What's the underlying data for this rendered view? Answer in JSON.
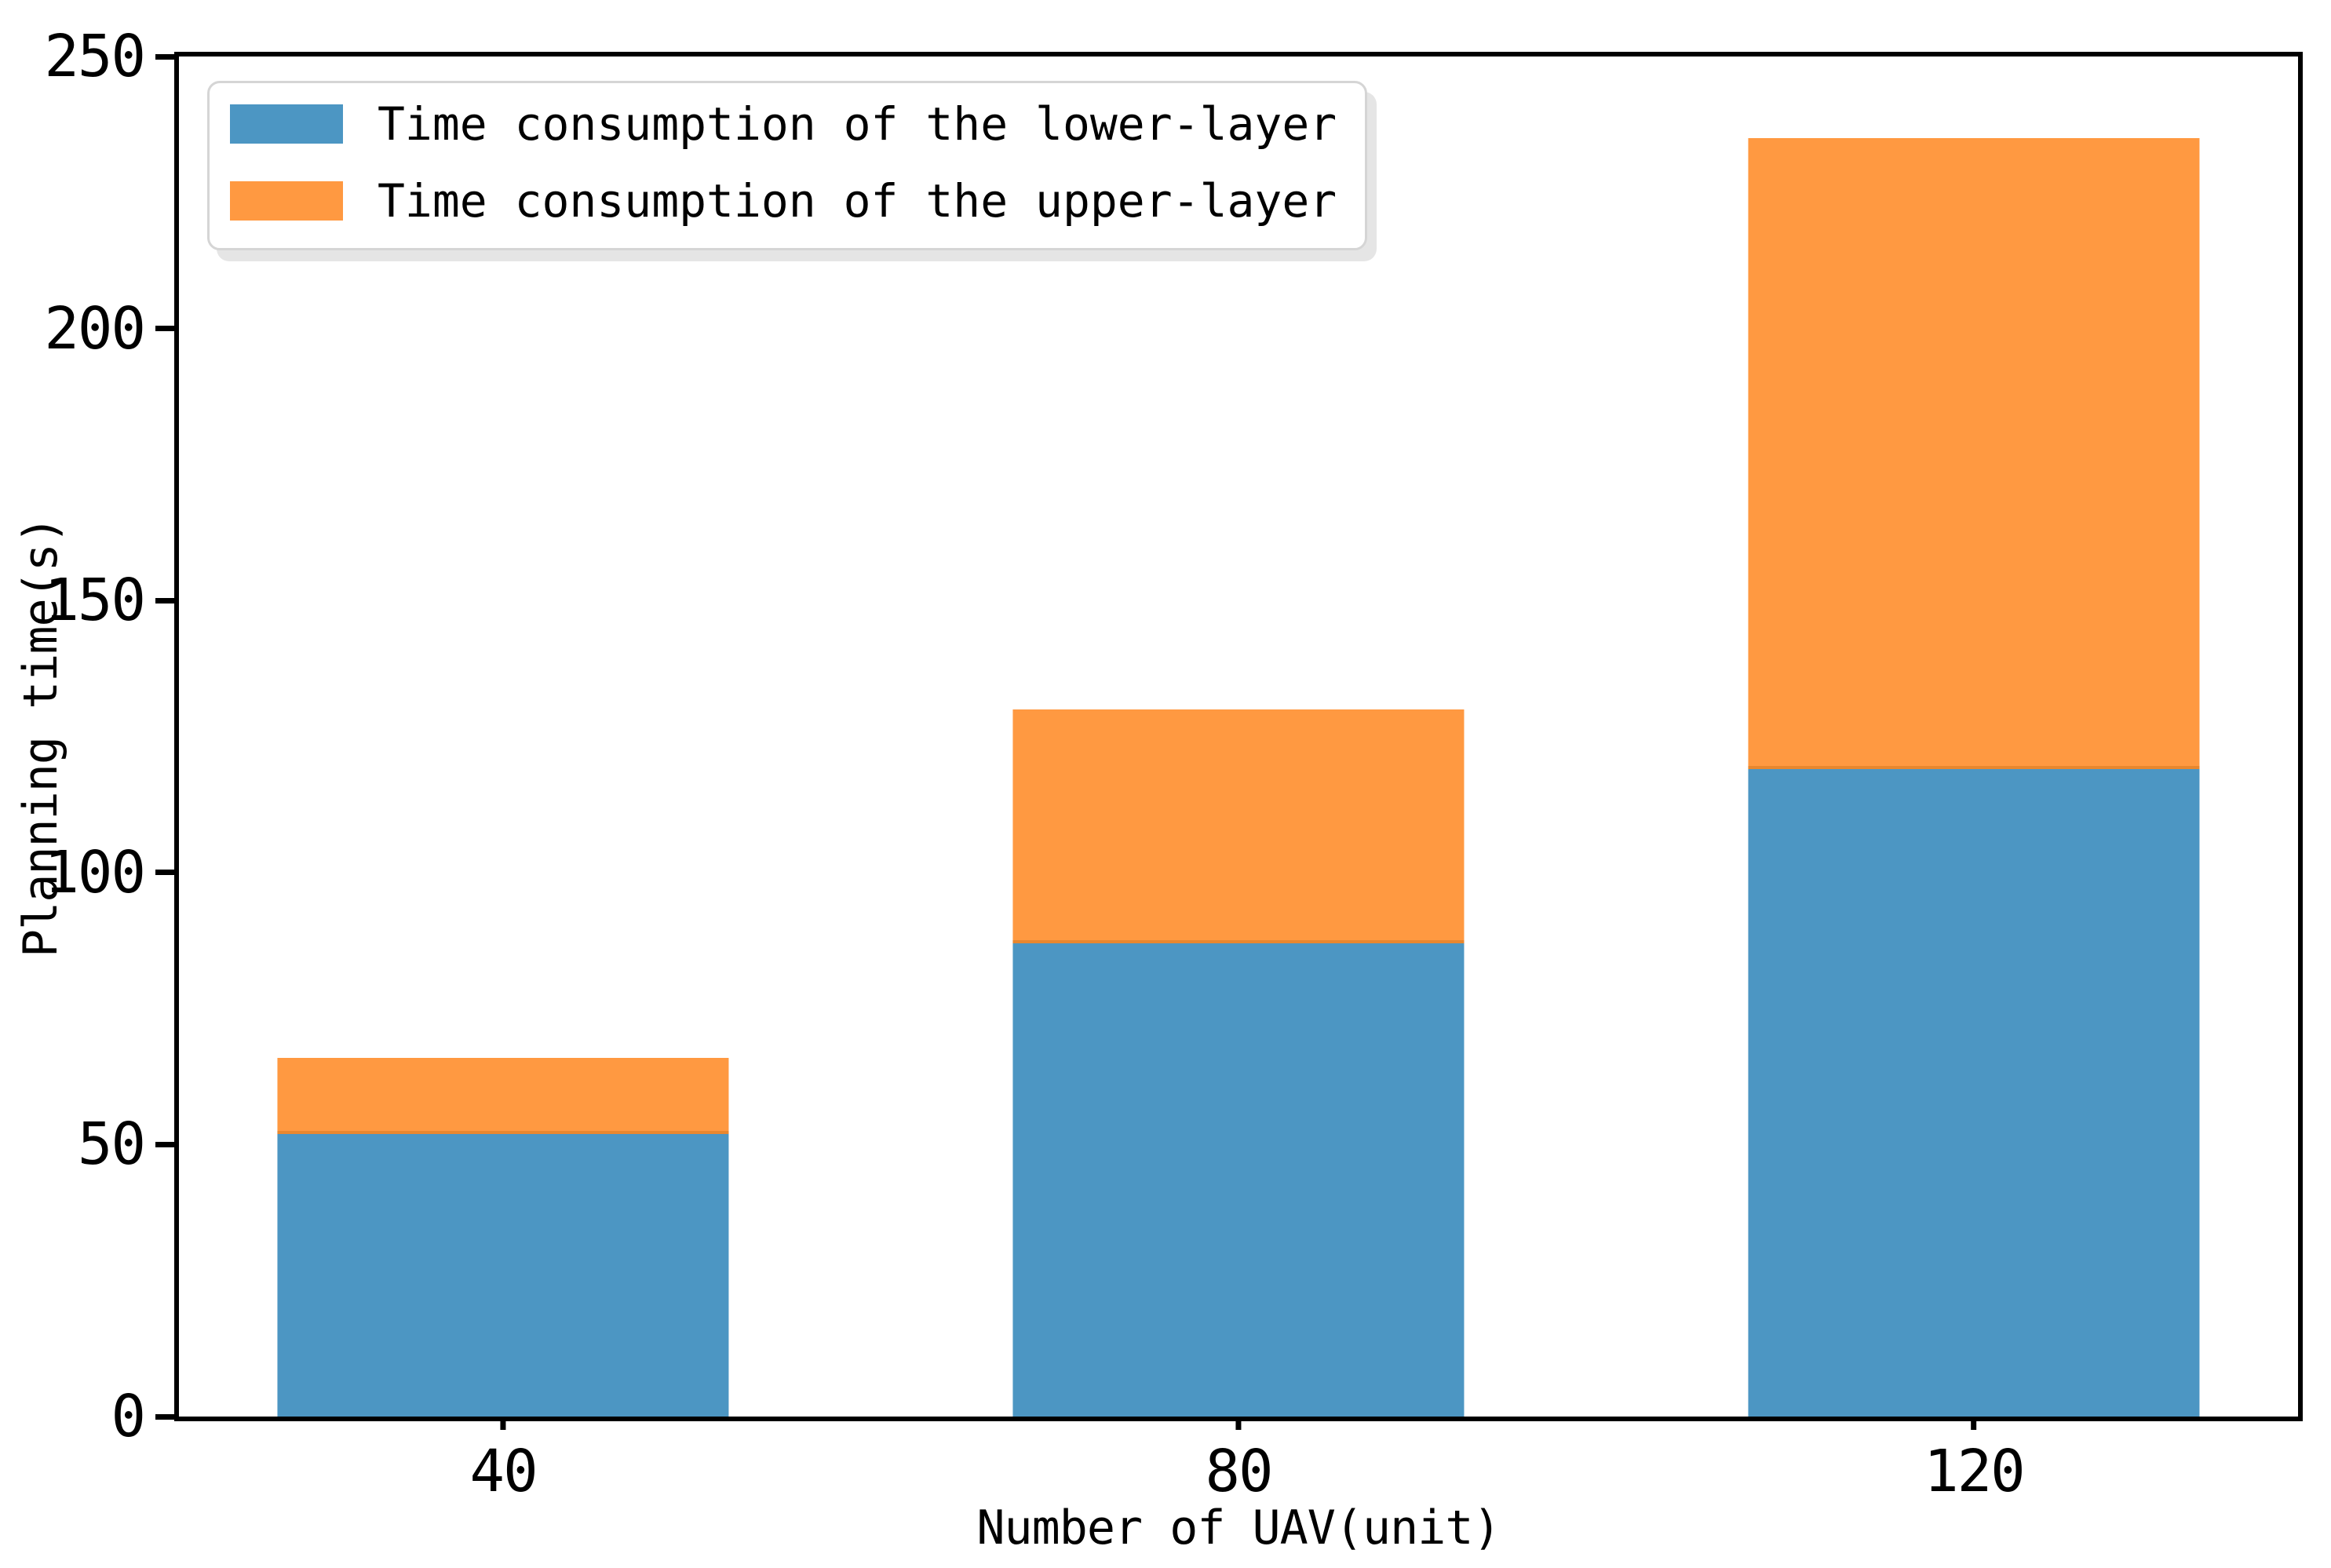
{
  "chart_data": {
    "type": "bar",
    "stacked": true,
    "title": "",
    "xlabel": "Number of UAV(unit)",
    "ylabel": "Planning time(s)",
    "categories": [
      "40",
      "80",
      "120"
    ],
    "series": [
      {
        "name": "Time consumption of the lower-layer",
        "color": "#4c96c3",
        "values": [
          52,
          87,
          119
        ]
      },
      {
        "name": "Time consumption of the upper-layer",
        "color": "#ff9941",
        "values": [
          14,
          43,
          116
        ]
      }
    ],
    "totals": [
      66,
      130,
      235
    ],
    "ylim": [
      0,
      250
    ],
    "yticks": [
      0,
      50,
      100,
      150,
      200,
      250
    ],
    "grid": false,
    "legend_position": "upper left",
    "layout": {
      "bar_centers_pct": [
        15.3,
        50,
        84.7
      ],
      "bar_width_pct": 21.3
    }
  },
  "colors": {
    "axis": "#000000",
    "background": "#ffffff",
    "legend_border": "#d5d5d5",
    "segment_divider": "#e8872e"
  }
}
